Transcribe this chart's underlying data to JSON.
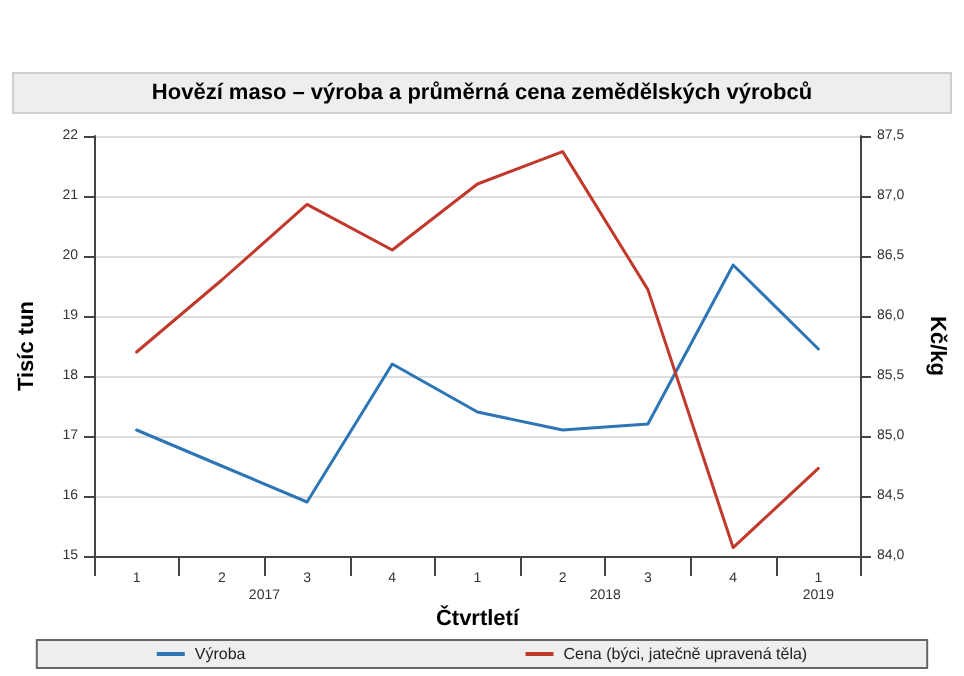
{
  "chart_data": {
    "type": "line",
    "title": "Hovězí maso – výroba a průměrná cena zemědělských výrobců",
    "xlabel": "Čtvrtletí",
    "ylabel": "Tisíc tun",
    "y2label": "Kč/kg",
    "categories": [
      "1",
      "2",
      "3",
      "4",
      "1",
      "2",
      "3",
      "4",
      "1"
    ],
    "annotations": [
      "2017",
      "2018",
      "2019"
    ],
    "series": [
      {
        "name": "Výroba",
        "color": "#2e75b6",
        "values": [
          17.1,
          16.5,
          15.9,
          18.2,
          17.4,
          17.1,
          17.2,
          19.85,
          18.45
        ]
      },
      {
        "name": "Cena (býci, jatečně upravená těla)",
        "color": "#c0392b",
        "axis": "y2",
        "values": [
          85.7,
          86.3,
          86.93,
          86.55,
          87.1,
          87.37,
          86.22,
          84.07,
          84.73
        ]
      }
    ],
    "ylim": [
      15,
      22
    ],
    "yticks": [
      15,
      16,
      17,
      18,
      19,
      20,
      21,
      22
    ],
    "y2lim": [
      84,
      87.5
    ],
    "y2ticks": [
      {
        "value": 84,
        "label": "84,0"
      },
      {
        "value": 84.5,
        "label": "84,5"
      },
      {
        "value": 85,
        "label": "85,0"
      },
      {
        "value": 85.5,
        "label": "85,5"
      },
      {
        "value": 86,
        "label": "86,0"
      },
      {
        "value": 86.5,
        "label": "86,5"
      },
      {
        "value": 87,
        "label": "87,0"
      },
      {
        "value": 87.5,
        "label": "87,5"
      }
    ],
    "grid": "y",
    "legend": "bottom",
    "marker": "none",
    "line_style": "solid"
  }
}
